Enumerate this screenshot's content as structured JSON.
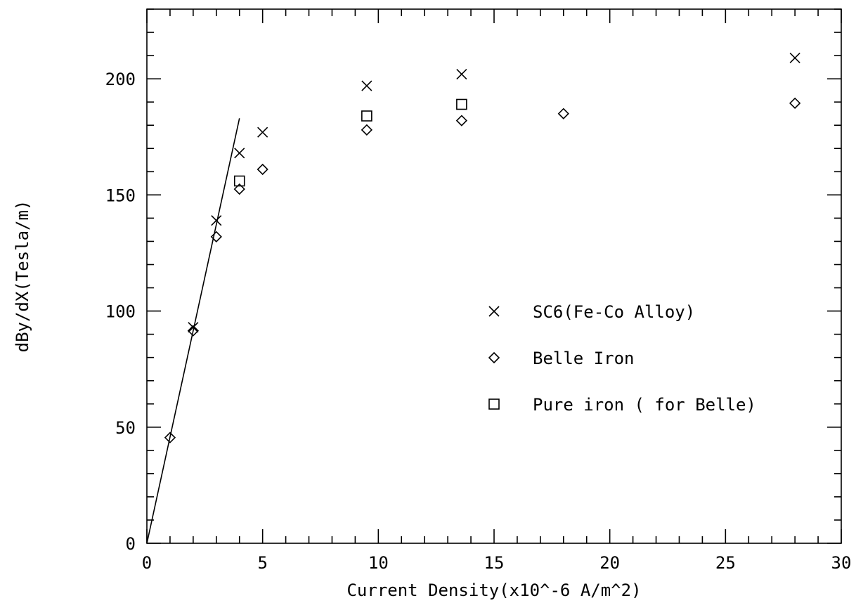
{
  "chart_data": {
    "type": "scatter",
    "title": "",
    "xlabel": "Current Density(x10^-6 A/m^2)",
    "ylabel": "dBy/dX(Tesla/m)",
    "xlim": [
      0,
      30
    ],
    "ylim": [
      0,
      230
    ],
    "x_ticks": [
      0,
      5,
      10,
      15,
      20,
      25,
      30
    ],
    "x_tick_labels": [
      "0",
      "5",
      "10",
      "15",
      "20",
      "25",
      "30"
    ],
    "y_ticks": [
      0,
      50,
      100,
      150,
      200
    ],
    "y_tick_labels": [
      "0",
      "50",
      "100",
      "150",
      "200"
    ],
    "x_minor_step": 1,
    "y_minor_step": 10,
    "grid": false,
    "legend_position": "center-right",
    "series": [
      {
        "name": "SC6(Fe-Co Alloy)",
        "marker": "cross",
        "points": [
          [
            2.0,
            93
          ],
          [
            3.0,
            139
          ],
          [
            4.0,
            168
          ],
          [
            5.0,
            177
          ],
          [
            9.5,
            197
          ],
          [
            13.6,
            202
          ],
          [
            28.0,
            209
          ]
        ]
      },
      {
        "name": "Belle Iron",
        "marker": "diamond",
        "points": [
          [
            1.0,
            45.5
          ],
          [
            2.0,
            91.5
          ],
          [
            3.0,
            132
          ],
          [
            4.0,
            152.5
          ],
          [
            5.0,
            161
          ],
          [
            9.5,
            178
          ],
          [
            13.6,
            182
          ],
          [
            18.0,
            185
          ],
          [
            28.0,
            189.5
          ]
        ]
      },
      {
        "name": "Pure iron ( for Belle)",
        "marker": "square",
        "points": [
          [
            4.0,
            156
          ],
          [
            9.5,
            184
          ],
          [
            13.6,
            189
          ]
        ]
      }
    ],
    "reference_line": {
      "points": [
        [
          0,
          0
        ],
        [
          4.0,
          183
        ]
      ]
    }
  }
}
